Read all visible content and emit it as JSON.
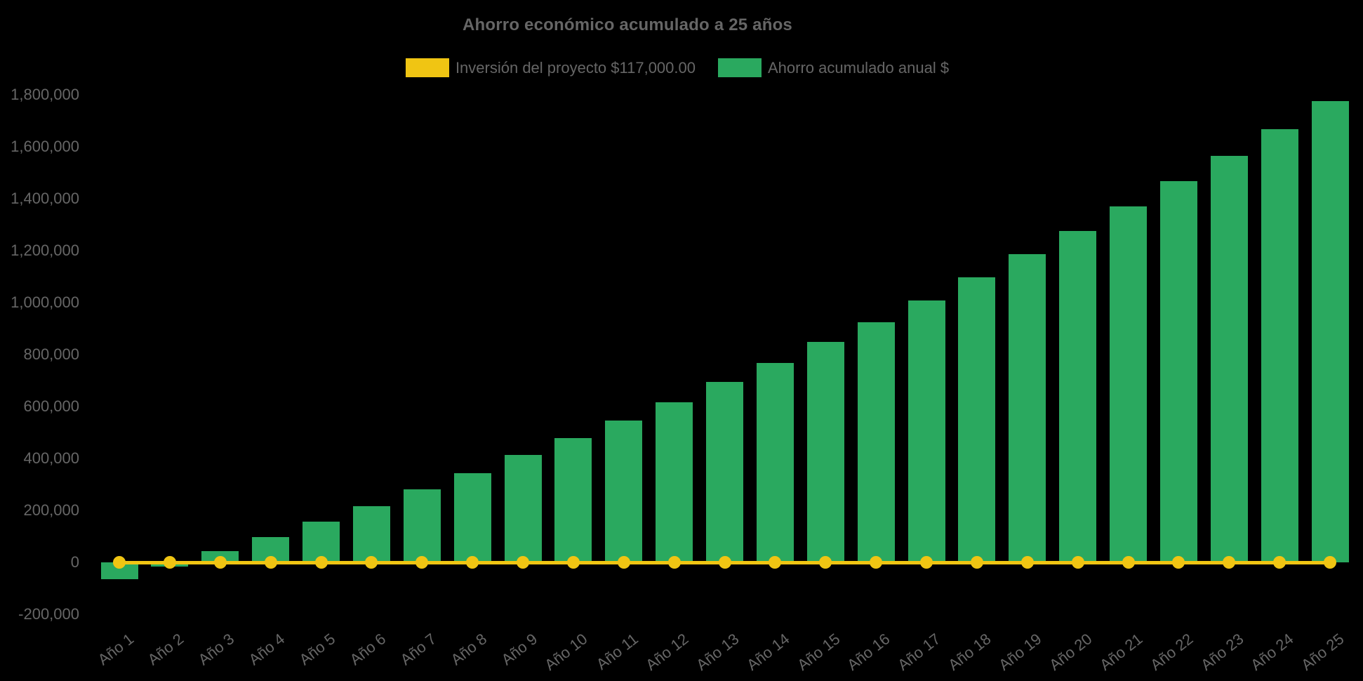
{
  "title": "Ahorro económico acumulado a 25 años",
  "legend": [
    {
      "label": "Inversión del proyecto $117,000.00",
      "color": "#F0C513"
    },
    {
      "label": "Ahorro acumulado anual $",
      "color": "#2AA95F"
    }
  ],
  "colors": {
    "background": "#000000",
    "text": "#666666",
    "bar": "#2AA95F",
    "line": "#F0C513"
  },
  "chart_data": {
    "type": "bar",
    "title": "Ahorro económico acumulado a 25 años",
    "categories": [
      "Año 1",
      "Año 2",
      "Año 3",
      "Año 4",
      "Año 5",
      "Año 6",
      "Año 7",
      "Año 8",
      "Año 9",
      "Año 10",
      "Año 11",
      "Año 12",
      "Año 13",
      "Año 14",
      "Año 15",
      "Año 16",
      "Año 17",
      "Año 18",
      "Año 19",
      "Año 20",
      "Año 21",
      "Año 22",
      "Año 23",
      "Año 24",
      "Año 25"
    ],
    "series": [
      {
        "name": "Ahorro acumulado anual $",
        "type": "bar",
        "color": "#2AA95F",
        "values": [
          -65000,
          -15000,
          43000,
          97000,
          159000,
          216000,
          281000,
          345000,
          413000,
          478000,
          548000,
          618000,
          694000,
          769000,
          848000,
          926000,
          1009000,
          1098000,
          1188000,
          1277000,
          1371000,
          1468000,
          1565000,
          1668000,
          1776000
        ]
      },
      {
        "name": "Inversión del proyecto $117,000.00",
        "type": "line",
        "color": "#F0C513",
        "values": [
          0,
          0,
          0,
          0,
          0,
          0,
          0,
          0,
          0,
          0,
          0,
          0,
          0,
          0,
          0,
          0,
          0,
          0,
          0,
          0,
          0,
          0,
          0,
          0,
          0
        ]
      }
    ],
    "ylim": [
      -200000,
      1800000
    ],
    "ytick_step": 200000,
    "yticks": [
      {
        "label": "1,800,000",
        "value": 1800000
      },
      {
        "label": "1,600,000",
        "value": 1600000
      },
      {
        "label": "1,400,000",
        "value": 1400000
      },
      {
        "label": "1,200,000",
        "value": 1200000
      },
      {
        "label": "1,000,000",
        "value": 1000000
      },
      {
        "label": "800,000",
        "value": 800000
      },
      {
        "label": "600,000",
        "value": 600000
      },
      {
        "label": "400,000",
        "value": 400000
      },
      {
        "label": "200,000",
        "value": 200000
      },
      {
        "label": "0",
        "value": 0
      },
      {
        "label": "-200,000",
        "value": -200000
      }
    ],
    "grid": false,
    "legend_position": "top",
    "x_labels_rotated": true
  }
}
